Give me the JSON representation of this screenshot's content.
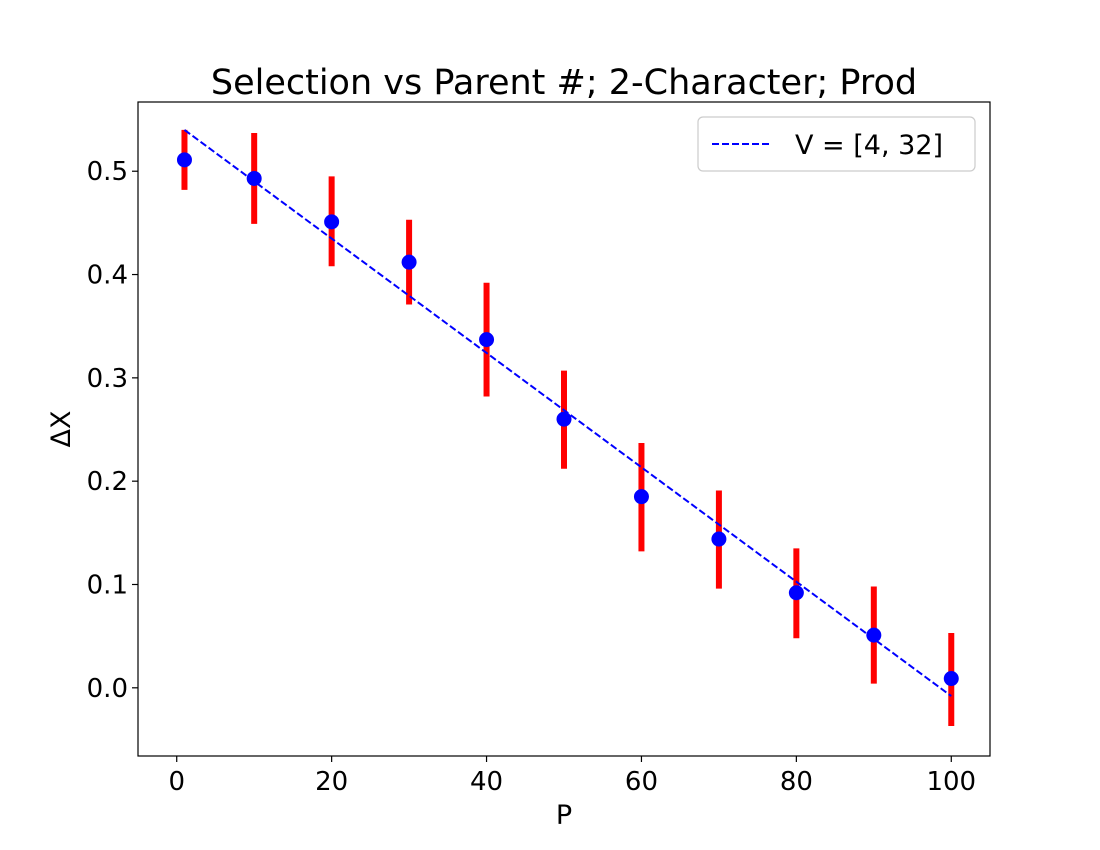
{
  "chart_data": {
    "type": "scatter",
    "title": "Selection vs Parent #; 2-Character; Prod",
    "xlabel": "P",
    "ylabel": "ΔX",
    "xlim": [
      -5,
      105
    ],
    "ylim": [
      -0.066,
      0.567
    ],
    "xticks": [
      0,
      20,
      40,
      60,
      80,
      100
    ],
    "yticks": [
      0.0,
      0.1,
      0.2,
      0.3,
      0.4,
      0.5
    ],
    "xtick_labels": [
      "0",
      "20",
      "40",
      "60",
      "80",
      "100"
    ],
    "ytick_labels": [
      "0.0",
      "0.1",
      "0.2",
      "0.3",
      "0.4",
      "0.5"
    ],
    "grid": false,
    "legend_position": "top-right",
    "points": {
      "x": [
        1,
        10,
        20,
        30,
        40,
        50,
        60,
        70,
        80,
        90,
        100
      ],
      "y": [
        0.511,
        0.493,
        0.451,
        0.412,
        0.337,
        0.26,
        0.185,
        0.144,
        0.092,
        0.051,
        0.009
      ],
      "yerr_low": [
        0.482,
        0.449,
        0.408,
        0.371,
        0.282,
        0.212,
        0.132,
        0.096,
        0.048,
        0.004,
        -0.037
      ],
      "yerr_high": [
        0.54,
        0.537,
        0.495,
        0.453,
        0.392,
        0.307,
        0.237,
        0.191,
        0.135,
        0.098,
        0.053
      ],
      "marker_color": "#0000ff",
      "errorbar_color": "#ff0000"
    },
    "series": [
      {
        "name": "V = [4, 32]",
        "type": "line",
        "style": "dashed",
        "color": "#0000ff",
        "x": [
          1,
          100
        ],
        "y": [
          0.54,
          -0.008
        ]
      }
    ]
  }
}
